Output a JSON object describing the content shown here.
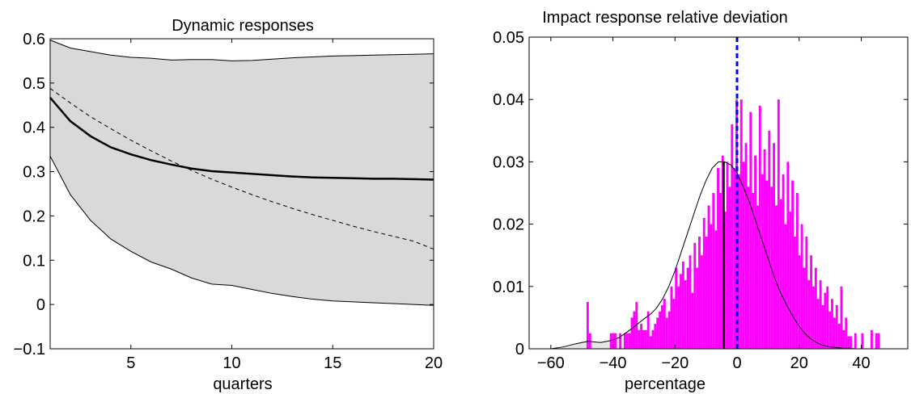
{
  "chart_data": [
    {
      "type": "line",
      "title": "Dynamic responses",
      "xlabel": "quarters",
      "ylabel": "",
      "xlim": [
        1,
        20
      ],
      "ylim": [
        -0.1,
        0.6
      ],
      "xticks": [
        5,
        10,
        15,
        20
      ],
      "yticks": [
        -0.1,
        0,
        0.1,
        0.2,
        0.3,
        0.4,
        0.5,
        0.6
      ],
      "xticklabels": [
        "5",
        "10",
        "15",
        "20"
      ],
      "yticklabels": [
        "−0.1",
        "0",
        "0.1",
        "0.2",
        "0.3",
        "0.4",
        "0.5",
        "0.6"
      ],
      "grid": false,
      "band_color": "#d9d9d9",
      "x": [
        1,
        2,
        3,
        4,
        5,
        6,
        7,
        8,
        9,
        10,
        11,
        12,
        13,
        14,
        15,
        16,
        17,
        18,
        19,
        20
      ],
      "series": [
        {
          "role": "upper_band",
          "values": [
            0.597,
            0.579,
            0.571,
            0.563,
            0.558,
            0.556,
            0.552,
            0.553,
            0.553,
            0.55,
            0.551,
            0.554,
            0.557,
            0.559,
            0.561,
            0.562,
            0.563,
            0.564,
            0.565,
            0.566
          ]
        },
        {
          "role": "lower_band",
          "values": [
            0.335,
            0.248,
            0.19,
            0.148,
            0.12,
            0.096,
            0.08,
            0.06,
            0.046,
            0.043,
            0.034,
            0.025,
            0.018,
            0.012,
            0.008,
            0.006,
            0.004,
            0.002,
            0.0,
            -0.002
          ]
        },
        {
          "role": "median",
          "style": "solid-thick",
          "values": [
            0.467,
            0.414,
            0.38,
            0.355,
            0.339,
            0.326,
            0.316,
            0.307,
            0.301,
            0.298,
            0.295,
            0.292,
            0.289,
            0.287,
            0.286,
            0.285,
            0.284,
            0.284,
            0.283,
            0.282
          ]
        },
        {
          "role": "reference",
          "style": "dashed",
          "values": [
            0.488,
            0.455,
            0.424,
            0.397,
            0.371,
            0.347,
            0.324,
            0.303,
            0.283,
            0.265,
            0.248,
            0.232,
            0.217,
            0.203,
            0.19,
            0.177,
            0.165,
            0.154,
            0.143,
            0.125
          ]
        }
      ]
    },
    {
      "type": "histogram",
      "title": "Impact response relative deviation",
      "xlabel": "percentage",
      "ylabel": "",
      "xlim": [
        -67,
        55
      ],
      "ylim": [
        0,
        0.05
      ],
      "xticks": [
        -60,
        -40,
        -20,
        0,
        20,
        40
      ],
      "yticks": [
        0,
        0.01,
        0.02,
        0.03,
        0.04,
        0.05
      ],
      "xticklabels": [
        "−60",
        "−40",
        "−20",
        "0",
        "20",
        "40"
      ],
      "yticklabels": [
        "0",
        "0.01",
        "0.02",
        "0.03",
        "0.04",
        "0.05"
      ],
      "grid": false,
      "bar_color": "#ff00ff",
      "tail_fill_color": "#e6e6e6",
      "bin_start": -48.5,
      "bin_width": 0.75,
      "bar_heights": [
        0.0075,
        0.0025,
        0,
        0,
        0,
        0,
        0,
        0,
        0,
        0,
        0.0025,
        0.0025,
        0.0025,
        0,
        0.0025,
        0,
        0.0025,
        0.0025,
        0.0025,
        0.005,
        0.006,
        0.0075,
        0.003,
        0.004,
        0.003,
        0.003,
        0.006,
        0.002,
        0.003,
        0.004,
        0.005,
        0.006,
        0.007,
        0.008,
        0.005,
        0.006,
        0.01,
        0.008,
        0.013,
        0.01,
        0.012,
        0.014,
        0.011,
        0.013,
        0.015,
        0.009,
        0.017,
        0.013,
        0.018,
        0.015,
        0.021,
        0.018,
        0.023,
        0.02,
        0.025,
        0.019,
        0.029,
        0.025,
        0.031,
        0.022,
        0.03,
        0.026,
        0.036,
        0.029,
        0.04,
        0.028,
        0.04,
        0.03,
        0.033,
        0.026,
        0.038,
        0.025,
        0.031,
        0.023,
        0.039,
        0.028,
        0.032,
        0.027,
        0.035,
        0.026,
        0.033,
        0.023,
        0.04,
        0.024,
        0.028,
        0.02,
        0.03,
        0.022,
        0.027,
        0.018,
        0.025,
        0.015,
        0.02,
        0.013,
        0.018,
        0.011,
        0.015,
        0.01,
        0.013,
        0.008,
        0.011,
        0.007,
        0.009,
        0.01,
        0.006,
        0.008,
        0.005,
        0.007,
        0.004,
        0.01,
        0.003,
        0.005,
        0.002,
        0.002,
        0,
        0.0025,
        0,
        0,
        0.0025,
        0,
        0,
        0,
        0.003,
        0,
        0.0025,
        0.0025
      ],
      "density": {
        "x": [
          -60,
          -56,
          -52,
          -50,
          -48,
          -46,
          -44,
          -42,
          -40,
          -38,
          -36,
          -34,
          -32,
          -30,
          -28,
          -26,
          -24,
          -22,
          -20,
          -18,
          -16,
          -14,
          -12,
          -10,
          -8,
          -6,
          -4,
          -2,
          0,
          2,
          4,
          6,
          8,
          10,
          12,
          14,
          16,
          18,
          20,
          22,
          24,
          26,
          28,
          30,
          32,
          34,
          36,
          38,
          40
        ],
        "y": [
          0,
          0.0003,
          0.0008,
          0.001,
          0.0012,
          0.0011,
          0.001,
          0.0012,
          0.0014,
          0.0018,
          0.0025,
          0.0032,
          0.004,
          0.0048,
          0.0055,
          0.0065,
          0.008,
          0.01,
          0.0125,
          0.0155,
          0.0185,
          0.0215,
          0.0245,
          0.027,
          0.029,
          0.03,
          0.03,
          0.0295,
          0.0282,
          0.026,
          0.0235,
          0.0205,
          0.0175,
          0.0145,
          0.0115,
          0.009,
          0.007,
          0.0052,
          0.0036,
          0.0024,
          0.0015,
          0.0009,
          0.0005,
          0.0003,
          0.0002,
          0.0001,
          0.0001,
          0,
          0
        ]
      },
      "tail_cutoffs": [
        -33,
        20
      ],
      "median_line_x": -4.3,
      "zero_line": {
        "x": 0,
        "color": "#0000ff",
        "style": "dashed"
      }
    }
  ]
}
